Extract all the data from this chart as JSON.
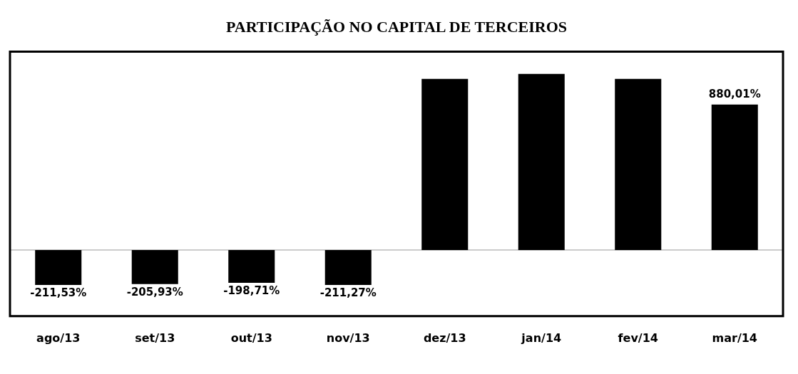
{
  "chart_data": {
    "type": "bar",
    "title": "PARTICIPAÇÃO NO CAPITAL DE TERCEIROS",
    "categories": [
      "ago/13",
      "set/13",
      "out/13",
      "nov/13",
      "dez/13",
      "jan/14",
      "fev/14",
      "mar/14"
    ],
    "values": [
      -211.53,
      -205.93,
      -198.71,
      -211.27,
      1035,
      1065,
      1035,
      880.01
    ],
    "value_labels": [
      "-211,53%",
      "-205,93%",
      "-198,71%",
      "-211,27%",
      null,
      null,
      null,
      "880,01%"
    ],
    "color": "#000000",
    "grid": false,
    "legend": false
  }
}
